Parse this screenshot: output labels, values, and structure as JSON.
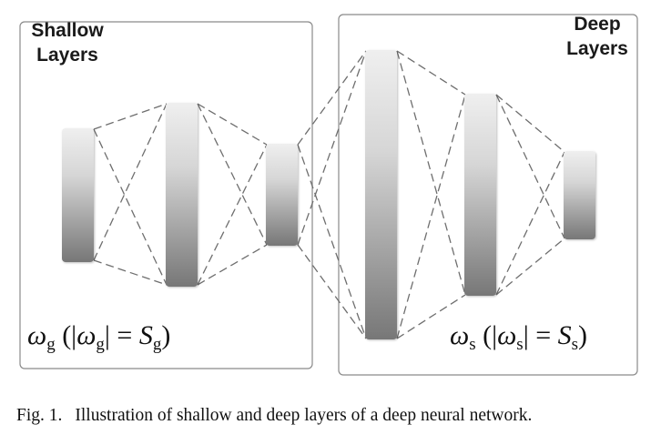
{
  "shallow_box": {
    "title": "Shallow\nLayers",
    "formula": {
      "w": "ω",
      "sub": "g",
      "S": "S"
    }
  },
  "deep_box": {
    "title": "Deep\nLayers",
    "formula": {
      "w": "ω",
      "sub": "s",
      "S": "S"
    }
  },
  "caption": {
    "label": "Fig. 1.",
    "text": "Illustration of shallow and deep layers of a deep neural network."
  },
  "colors": {
    "box_border": "#8a8a8a",
    "connection": "#6e6e6e",
    "layer_light": "#eeeeee",
    "layer_dark": "#7a7a7a"
  }
}
